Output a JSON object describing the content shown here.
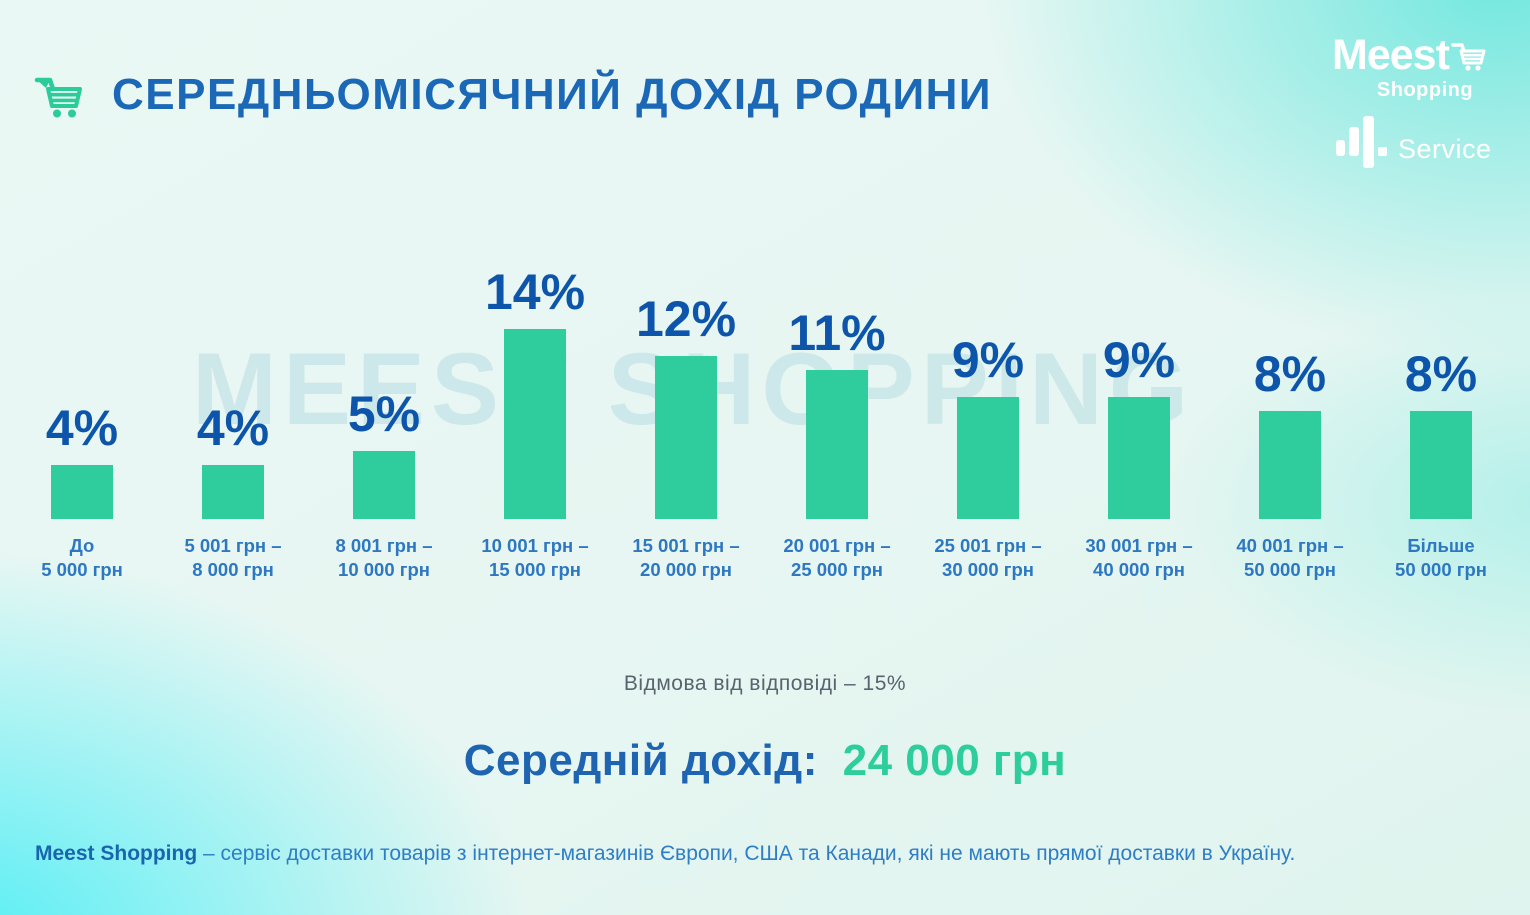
{
  "header": {
    "cart_icon": "shopping-cart-icon"
  },
  "brand": {
    "meest": "Meest",
    "meest_sub": "Shopping",
    "service": "Service"
  },
  "watermark": "MEEST SHOPPING",
  "chart_data": {
    "type": "bar",
    "title": "СЕРЕДНЬОМІСЯЧНИЙ ДОХІД РОДИНИ",
    "categories": [
      "До\n5 000 грн",
      "5 001 грн –\n8 000 грн",
      "8 001 грн –\n10 000 грн",
      "10 001 грн –\n15 000 грн",
      "15 001 грн –\n20 000 грн",
      "20 001 грн –\n25 000 грн",
      "25 001 грн –\n30 000 грн",
      "30 001 грн –\n40 000 грн",
      "40 001 грн –\n50 000 грн",
      "Більше\n50 000 грн"
    ],
    "values": [
      4,
      4,
      5,
      14,
      12,
      11,
      9,
      9,
      8,
      8
    ],
    "value_labels": [
      "4%",
      "4%",
      "5%",
      "14%",
      "12%",
      "11%",
      "9%",
      "9%",
      "8%",
      "8%"
    ],
    "xlabel": "",
    "ylabel": "",
    "ylim": [
      0,
      15
    ],
    "grid": false,
    "legend": false,
    "bar_color": "#2fcd9e",
    "annotation_refusal": "Відмова від відповіді  – 15%",
    "average_label": "Середній дохід:",
    "average_value": "24 000 грн"
  },
  "footer": {
    "brand": "Meest Shopping",
    "text": " – сервіс доставки товарів з інтернет-магазинів Європи, США та Канади, які не мають прямої доставки в Україну."
  },
  "colors": {
    "title_blue": "#1a68b6",
    "value_blue": "#0d55aa",
    "category_blue": "#2d78c1",
    "bar_green": "#2fcd9e",
    "accent_green": "#2bcb9a",
    "refusal_gray": "#58636e",
    "average_green": "#2ecd9c",
    "footer_blue": "#2e7ec5",
    "background_cyan": "#48eef5",
    "background_turquoise": "#6ce7de"
  }
}
